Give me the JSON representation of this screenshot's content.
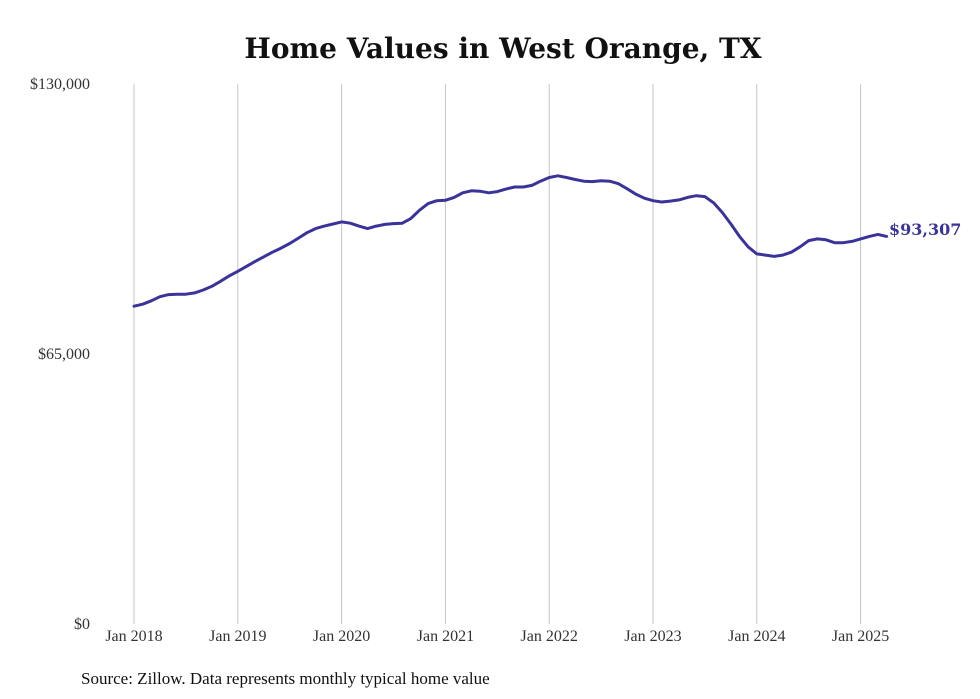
{
  "chart_data": {
    "type": "line",
    "title": "Home Values in West Orange, TX",
    "source": "Source: Zillow. Data represents monthly typical home value",
    "ylim": [
      0,
      130000
    ],
    "y_ticks": [
      0,
      65000,
      130000
    ],
    "y_tick_labels": [
      "$0",
      "$65,000",
      "$130,000"
    ],
    "x_tick_labels": [
      "Jan 2018",
      "Jan 2019",
      "Jan 2020",
      "Jan 2021",
      "Jan 2022",
      "Jan 2023",
      "Jan 2024",
      "Jan 2025"
    ],
    "grid": "vertical at each January",
    "line_color": "#3b3399",
    "end_label": "$93,307",
    "series": [
      {
        "start": "Jan 2018",
        "frequency": "monthly",
        "values": [
          76500,
          77000,
          77800,
          78800,
          79300,
          79400,
          79400,
          79700,
          80400,
          81300,
          82500,
          83800,
          84900,
          86100,
          87300,
          88400,
          89500,
          90500,
          91600,
          92900,
          94200,
          95200,
          95800,
          96300,
          96800,
          96500,
          95800,
          95200,
          95800,
          96200,
          96400,
          96500,
          97600,
          99600,
          101200,
          101900,
          102000,
          102700,
          103800,
          104300,
          104200,
          103800,
          104100,
          104700,
          105200,
          105200,
          105600,
          106600,
          107500,
          107900,
          107500,
          107000,
          106600,
          106500,
          106700,
          106600,
          106000,
          104800,
          103500,
          102500,
          101900,
          101600,
          101800,
          102100,
          102700,
          103100,
          102900,
          101400,
          99100,
          96300,
          93300,
          90800,
          89100,
          88800,
          88500,
          88800,
          89500,
          90800,
          92300,
          92700,
          92500,
          91800,
          91800,
          92100,
          92700,
          93300,
          93800,
          93307
        ]
      }
    ]
  }
}
